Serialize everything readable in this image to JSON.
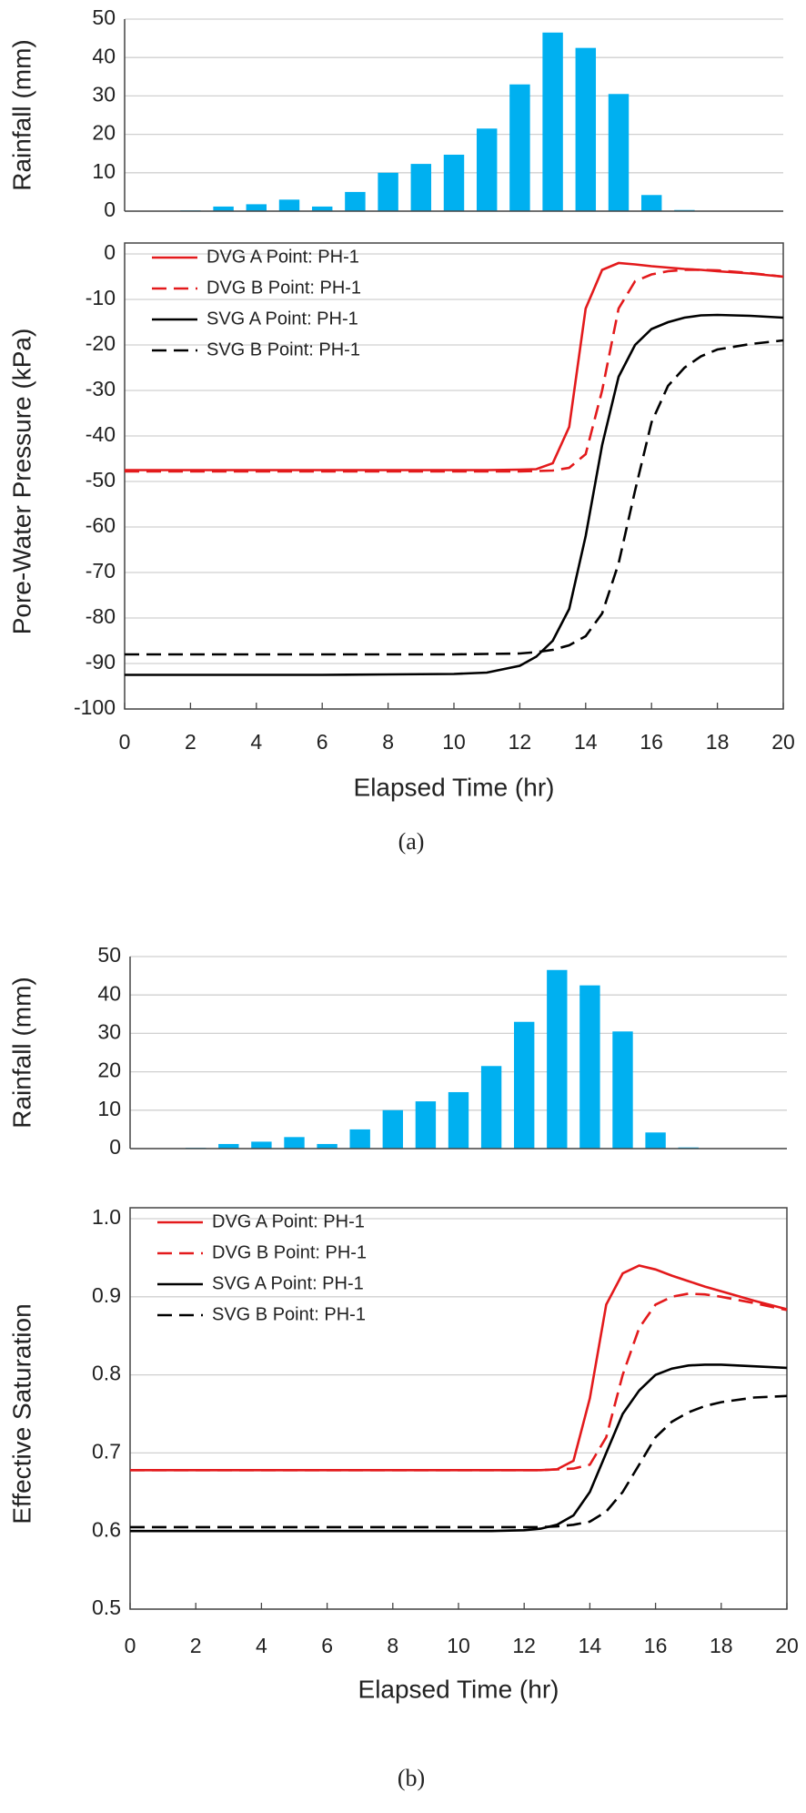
{
  "captions": [
    "(a)",
    "(b)"
  ],
  "chart_data": [
    {
      "type": "bar",
      "ylabel": "Rainfall (mm)",
      "x": [
        1,
        2,
        3,
        4,
        5,
        6,
        7,
        8,
        9,
        10,
        11,
        12,
        13,
        14,
        15,
        16,
        17,
        18,
        19
      ],
      "values": [
        0,
        0.2,
        1.2,
        1.8,
        3,
        1.2,
        5,
        10,
        12.3,
        14.7,
        21.5,
        33,
        46.5,
        42.5,
        30.5,
        4.2,
        0.3,
        0,
        0
      ],
      "color": "#00b0f0",
      "xlim": [
        0,
        20
      ],
      "ylim": [
        0,
        50
      ],
      "yticks": [
        0,
        10,
        20,
        30,
        40,
        50
      ],
      "grid": true
    },
    {
      "type": "line",
      "xlabel": "Elapsed Time (hr)",
      "ylabel": "Pore-Water Pressure (kPa)",
      "x": [
        0,
        2,
        4,
        6,
        8,
        10,
        11,
        12,
        12.5,
        13,
        13.5,
        14,
        14.5,
        15,
        15.5,
        16,
        16.5,
        17,
        17.5,
        18,
        19,
        20
      ],
      "series": [
        {
          "name": "DVG A Point: PH-1",
          "color": "#e31a1c",
          "dash": "solid",
          "values": [
            -47.5,
            -47.5,
            -47.5,
            -47.5,
            -47.5,
            -47.5,
            -47.5,
            -47.4,
            -47.3,
            -46,
            -38,
            -12,
            -3.5,
            -2,
            -2.3,
            -2.7,
            -3,
            -3.3,
            -3.5,
            -3.8,
            -4.3,
            -5
          ]
        },
        {
          "name": "DVG B Point: PH-1",
          "color": "#e31a1c",
          "dash": "dashed",
          "values": [
            -47.8,
            -47.8,
            -47.8,
            -47.8,
            -47.8,
            -47.8,
            -47.8,
            -47.8,
            -47.7,
            -47.6,
            -47,
            -44,
            -30,
            -12,
            -6,
            -4.5,
            -3.8,
            -3.5,
            -3.5,
            -3.6,
            -4.2,
            -5
          ]
        },
        {
          "name": "SVG A Point: PH-1",
          "color": "#000000",
          "dash": "solid",
          "values": [
            -92.5,
            -92.5,
            -92.5,
            -92.5,
            -92.4,
            -92.3,
            -92,
            -90.5,
            -88.5,
            -85,
            -78,
            -62,
            -42,
            -27,
            -20,
            -16.5,
            -15,
            -14,
            -13.5,
            -13.4,
            -13.6,
            -14
          ]
        },
        {
          "name": "SVG B Point: PH-1",
          "color": "#000000",
          "dash": "dashed",
          "values": [
            -88,
            -88,
            -88,
            -88,
            -88,
            -88,
            -87.9,
            -87.8,
            -87.5,
            -87,
            -86,
            -84,
            -79,
            -68,
            -52,
            -37,
            -29,
            -25,
            -22.5,
            -21,
            -19.8,
            -19
          ]
        }
      ],
      "xlim": [
        0,
        20
      ],
      "xticks": [
        0,
        2,
        4,
        6,
        8,
        10,
        12,
        14,
        16,
        18,
        20
      ],
      "ylim": [
        -100,
        0
      ],
      "yticks": [
        -100,
        -90,
        -80,
        -70,
        -60,
        -50,
        -40,
        -30,
        -20,
        -10,
        0
      ],
      "grid": true,
      "legend": "upper left"
    },
    {
      "type": "bar",
      "ylabel": "Rainfall (mm)",
      "x": [
        1,
        2,
        3,
        4,
        5,
        6,
        7,
        8,
        9,
        10,
        11,
        12,
        13,
        14,
        15,
        16,
        17,
        18,
        19
      ],
      "values": [
        0,
        0.2,
        1.2,
        1.8,
        3,
        1.2,
        5,
        10,
        12.3,
        14.7,
        21.5,
        33,
        46.5,
        42.5,
        30.5,
        4.2,
        0.3,
        0,
        0
      ],
      "color": "#00b0f0",
      "xlim": [
        0,
        20
      ],
      "ylim": [
        0,
        50
      ],
      "yticks": [
        0,
        10,
        20,
        30,
        40,
        50
      ],
      "grid": true
    },
    {
      "type": "line",
      "xlabel": "Elapsed Time (hr)",
      "ylabel": "Effective Saturation",
      "x": [
        0,
        2,
        4,
        6,
        8,
        10,
        11,
        12,
        12.5,
        13,
        13.5,
        14,
        14.5,
        15,
        15.5,
        16,
        16.5,
        17,
        17.5,
        18,
        19,
        20
      ],
      "series": [
        {
          "name": "DVG A Point: PH-1",
          "color": "#e31a1c",
          "dash": "solid",
          "values": [
            0.678,
            0.678,
            0.678,
            0.678,
            0.678,
            0.678,
            0.678,
            0.678,
            0.678,
            0.679,
            0.69,
            0.77,
            0.89,
            0.93,
            0.94,
            0.935,
            0.927,
            0.92,
            0.913,
            0.907,
            0.895,
            0.884
          ]
        },
        {
          "name": "DVG B Point: PH-1",
          "color": "#e31a1c",
          "dash": "dashed",
          "values": [
            0.678,
            0.678,
            0.678,
            0.678,
            0.678,
            0.678,
            0.678,
            0.678,
            0.678,
            0.679,
            0.68,
            0.685,
            0.72,
            0.8,
            0.86,
            0.89,
            0.9,
            0.904,
            0.903,
            0.9,
            0.892,
            0.883
          ]
        },
        {
          "name": "SVG A Point: PH-1",
          "color": "#000000",
          "dash": "solid",
          "values": [
            0.6,
            0.6,
            0.6,
            0.6,
            0.6,
            0.6,
            0.6,
            0.601,
            0.603,
            0.608,
            0.62,
            0.65,
            0.7,
            0.75,
            0.78,
            0.8,
            0.808,
            0.812,
            0.813,
            0.813,
            0.811,
            0.809
          ]
        },
        {
          "name": "SVG B Point: PH-1",
          "color": "#000000",
          "dash": "dashed",
          "values": [
            0.605,
            0.605,
            0.605,
            0.605,
            0.605,
            0.605,
            0.605,
            0.605,
            0.605,
            0.606,
            0.608,
            0.612,
            0.625,
            0.65,
            0.685,
            0.72,
            0.74,
            0.752,
            0.76,
            0.765,
            0.771,
            0.773
          ]
        }
      ],
      "xlim": [
        0,
        20
      ],
      "xticks": [
        0,
        2,
        4,
        6,
        8,
        10,
        12,
        14,
        16,
        18,
        20
      ],
      "ylim": [
        0.5,
        1
      ],
      "yticks": [
        0.5,
        0.6,
        0.7,
        0.8,
        0.9,
        {
          "value": 1,
          "label": "1.0"
        }
      ],
      "grid": true,
      "legend": "upper left"
    }
  ]
}
